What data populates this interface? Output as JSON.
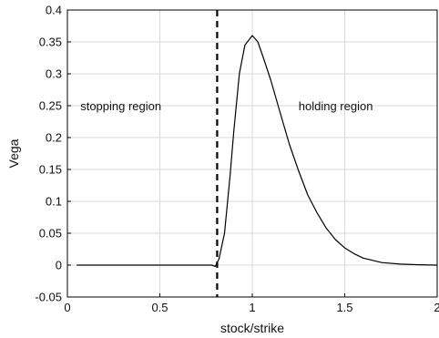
{
  "chart_data": {
    "type": "line",
    "xlabel": "stock/strike",
    "ylabel": "Vega",
    "xlim": [
      0,
      2
    ],
    "ylim": [
      -0.05,
      0.4
    ],
    "x_ticks": [
      "0",
      "0.5",
      "1",
      "1.5",
      "2"
    ],
    "y_ticks": [
      "-0.05",
      "0",
      "0.05",
      "0.1",
      "0.15",
      "0.2",
      "0.25",
      "0.3",
      "0.35",
      "0.4"
    ],
    "grid": true,
    "annotations": [
      {
        "text": "stopping region",
        "x": 0.07,
        "y": 0.25
      },
      {
        "text": "holding region",
        "x": 1.25,
        "y": 0.25
      }
    ],
    "boundary_x": 0.81,
    "series": [
      {
        "color": "#000000",
        "points": [
          [
            0.05,
            0.0
          ],
          [
            0.2,
            0.0
          ],
          [
            0.4,
            0.0
          ],
          [
            0.6,
            0.0
          ],
          [
            0.78,
            0.0
          ],
          [
            0.8,
            -0.002
          ],
          [
            0.82,
            0.01
          ],
          [
            0.85,
            0.05
          ],
          [
            0.88,
            0.14
          ],
          [
            0.9,
            0.21
          ],
          [
            0.93,
            0.3
          ],
          [
            0.96,
            0.345
          ],
          [
            1.0,
            0.36
          ],
          [
            1.03,
            0.35
          ],
          [
            1.06,
            0.325
          ],
          [
            1.1,
            0.29
          ],
          [
            1.15,
            0.24
          ],
          [
            1.2,
            0.19
          ],
          [
            1.25,
            0.148
          ],
          [
            1.3,
            0.11
          ],
          [
            1.35,
            0.082
          ],
          [
            1.4,
            0.058
          ],
          [
            1.45,
            0.04
          ],
          [
            1.5,
            0.027
          ],
          [
            1.55,
            0.018
          ],
          [
            1.6,
            0.011
          ],
          [
            1.7,
            0.004
          ],
          [
            1.8,
            0.0015
          ],
          [
            1.9,
            0.0005
          ],
          [
            2.0,
            0.0
          ]
        ]
      }
    ]
  }
}
